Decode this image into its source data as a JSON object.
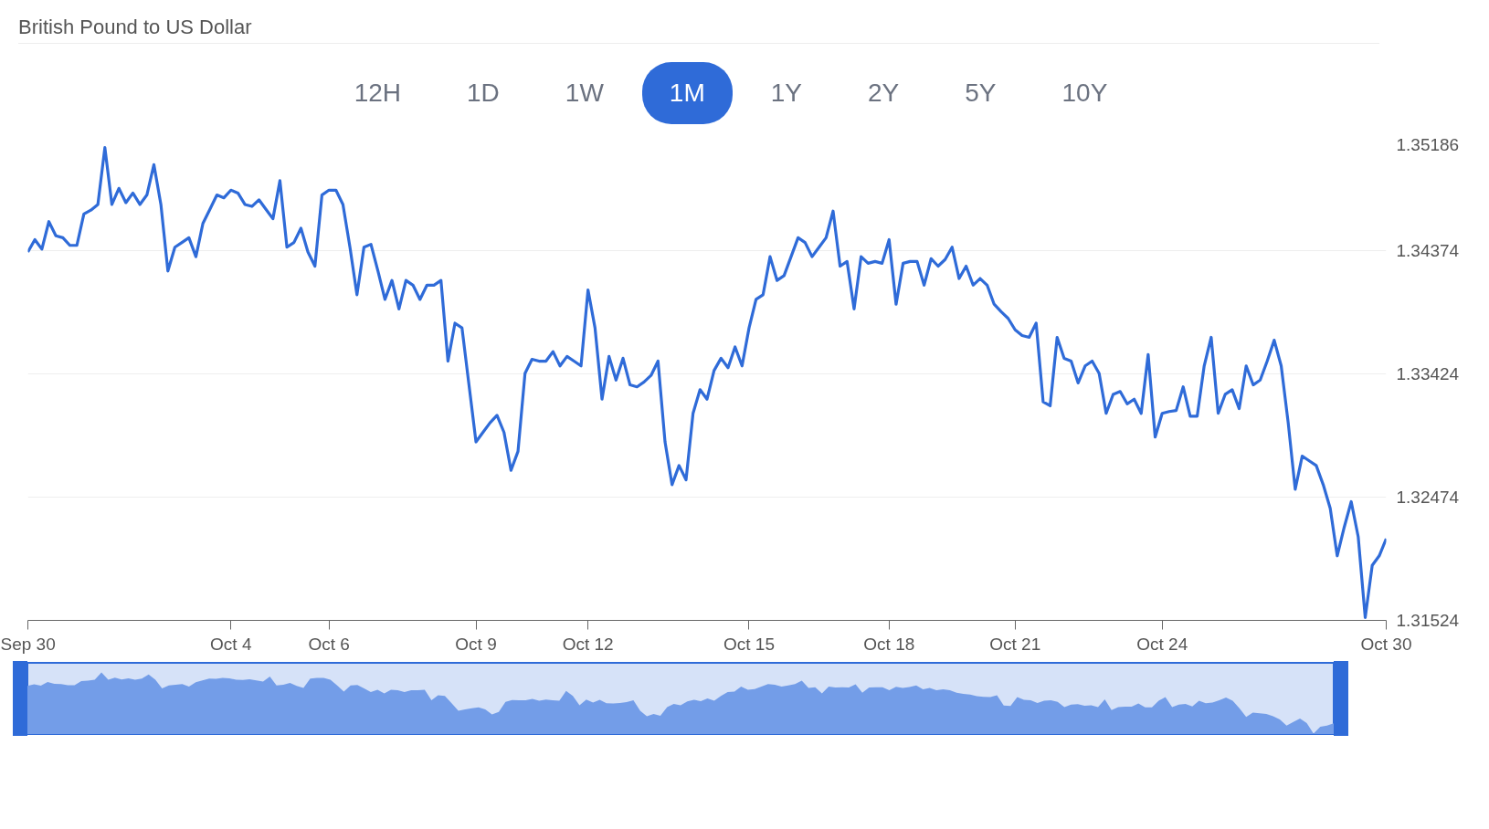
{
  "chart_data": {
    "type": "line",
    "title": "British Pound to US Dollar",
    "annotations": [
      "12H",
      "1D",
      "1W",
      "1M",
      "1Y",
      "2Y",
      "5Y",
      "10Y"
    ],
    "categories": [
      "Sep 30",
      null,
      null,
      null,
      null,
      null,
      null,
      null,
      null,
      null,
      null,
      null,
      null,
      null,
      null,
      null,
      null,
      null,
      null,
      null,
      null,
      null,
      null,
      null,
      null,
      null,
      null,
      null,
      null,
      "Oct 4",
      null,
      null,
      null,
      null,
      null,
      null,
      null,
      null,
      null,
      null,
      null,
      null,
      null,
      "Oct 6",
      null,
      null,
      null,
      null,
      null,
      null,
      null,
      null,
      null,
      null,
      null,
      null,
      null,
      null,
      null,
      null,
      null,
      null,
      null,
      null,
      "Oct 9",
      null,
      null,
      null,
      null,
      null,
      null,
      null,
      null,
      null,
      null,
      null,
      null,
      null,
      null,
      null,
      "Oct 12",
      null,
      null,
      null,
      null,
      null,
      null,
      null,
      null,
      null,
      null,
      null,
      null,
      null,
      null,
      null,
      null,
      null,
      null,
      null,
      null,
      null,
      null,
      "Oct 15",
      null,
      null,
      null,
      null,
      null,
      null,
      null,
      null,
      null,
      null,
      null,
      null,
      null,
      null,
      null,
      null,
      null,
      null,
      null,
      "Oct 18",
      null,
      null,
      null,
      null,
      null,
      null,
      null,
      null,
      null,
      null,
      null,
      null,
      null,
      null,
      null,
      null,
      null,
      "Oct 21",
      null,
      null,
      null,
      null,
      null,
      null,
      null,
      null,
      null,
      null,
      null,
      null,
      null,
      null,
      null,
      null,
      null,
      null,
      null,
      null,
      "Oct 24",
      null,
      null,
      null,
      null,
      null,
      null,
      null,
      null,
      null,
      null,
      null,
      null,
      null,
      null,
      null,
      null,
      null,
      null,
      null,
      null,
      null,
      null,
      null,
      null,
      null,
      null,
      null,
      null,
      null,
      null,
      null,
      "Oct 30"
    ],
    "series": [
      {
        "color": "#2f6bd8",
        "values": [
          1.3436,
          1.34455,
          1.34382,
          1.34594,
          1.34485,
          1.3447,
          1.34411,
          1.34411,
          1.34653,
          1.34682,
          1.34726,
          1.35164,
          1.34726,
          1.3485,
          1.3474,
          1.34814,
          1.34726,
          1.34799,
          1.35033,
          1.34726,
          1.34214,
          1.34397,
          1.34433,
          1.3447,
          1.34324,
          1.3458,
          1.34689,
          1.34799,
          1.34777,
          1.34836,
          1.34814,
          1.34726,
          1.34711,
          1.34762,
          1.34689,
          1.34616,
          1.34909,
          1.34397,
          1.34433,
          1.34543,
          1.3436,
          1.34251,
          1.34799,
          1.34836,
          1.34836,
          1.34726,
          1.34397,
          1.34031,
          1.34397,
          1.34419,
          1.34214,
          1.33995,
          1.34141,
          1.33922,
          1.34141,
          1.34105,
          1.33995,
          1.34105,
          1.34105,
          1.34141,
          1.3352,
          1.33812,
          1.33776,
          1.33337,
          1.32898,
          1.32972,
          1.33045,
          1.33103,
          1.32972,
          1.32679,
          1.32825,
          1.33425,
          1.33534,
          1.3352,
          1.3352,
          1.33593,
          1.33483,
          1.33556,
          1.3352,
          1.33483,
          1.34068,
          1.33776,
          1.33227,
          1.33556,
          1.33374,
          1.33542,
          1.33337,
          1.33322,
          1.33359,
          1.3341,
          1.3352,
          1.32898,
          1.32569,
          1.32716,
          1.32606,
          1.33118,
          1.333,
          1.33227,
          1.33447,
          1.33542,
          1.33469,
          1.33629,
          1.33483,
          1.33776,
          1.33995,
          1.34031,
          1.34324,
          1.34141,
          1.34178,
          1.34324,
          1.3447,
          1.34433,
          1.34324,
          1.34397,
          1.3447,
          1.34675,
          1.34251,
          1.34287,
          1.33922,
          1.34324,
          1.34273,
          1.34287,
          1.34273,
          1.34455,
          1.33958,
          1.34273,
          1.34287,
          1.34287,
          1.34105,
          1.34309,
          1.34251,
          1.34302,
          1.34397,
          1.34156,
          1.34251,
          1.34105,
          1.34156,
          1.34105,
          1.33958,
          1.339,
          1.33849,
          1.33761,
          1.33717,
          1.33703,
          1.33812,
          1.33206,
          1.33176,
          1.33703,
          1.33542,
          1.3352,
          1.33352,
          1.33483,
          1.3352,
          1.33425,
          1.33118,
          1.33264,
          1.33286,
          1.33191,
          1.33227,
          1.33118,
          1.33571,
          1.32935,
          1.33118,
          1.33132,
          1.3314,
          1.33322,
          1.33096,
          1.33096,
          1.33483,
          1.33703,
          1.33118,
          1.33264,
          1.333,
          1.33154,
          1.33483,
          1.33337,
          1.33374,
          1.3352,
          1.33681,
          1.33483,
          1.33045,
          1.32533,
          1.32789,
          1.32752,
          1.32716,
          1.32569,
          1.32387,
          1.32021,
          1.32241,
          1.32438,
          1.32167,
          1.31546,
          1.31948,
          1.32021,
          1.32153
        ]
      }
    ],
    "ylim": [
      1.31524,
      1.35186
    ],
    "yticks": [
      1.31524,
      1.32474,
      1.33424,
      1.34374,
      1.35186
    ],
    "grid": "y",
    "line_style": "solid"
  }
}
